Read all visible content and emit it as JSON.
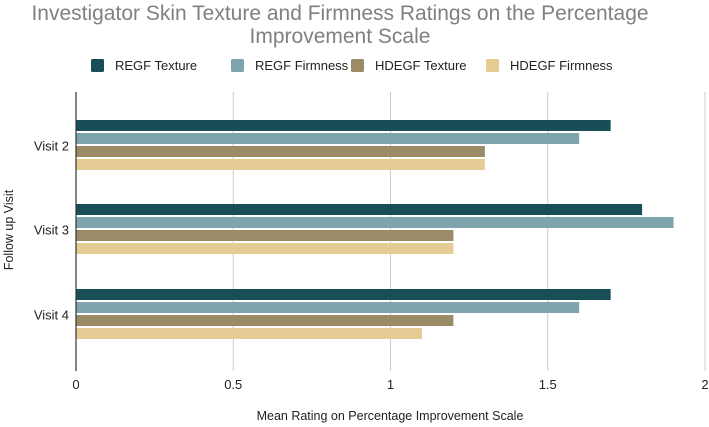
{
  "chart_data": {
    "type": "bar",
    "orientation": "horizontal",
    "title_lines": [
      "Investigator Skin Texture and Firmness Ratings on the Percentage",
      "Improvement Scale"
    ],
    "xlabel": "Mean Rating on Percentage Improvement Scale",
    "ylabel": "Follow up Visit",
    "categories": [
      "Visit 2",
      "Visit 3",
      "Visit 4"
    ],
    "xlim": [
      0,
      2
    ],
    "xticks": [
      0,
      0.5,
      1,
      1.5,
      2
    ],
    "xtick_labels": [
      "0",
      "0.5",
      "1",
      "1.5",
      "2"
    ],
    "grid": "vertical",
    "legend_position": "top",
    "series": [
      {
        "name": "REGF Texture",
        "color": "#174e57",
        "values": [
          1.7,
          1.8,
          1.7
        ]
      },
      {
        "name": "REGF Firmness",
        "color": "#7ea5ad",
        "values": [
          1.6,
          1.9,
          1.6
        ]
      },
      {
        "name": "HDEGF Texture",
        "color": "#9b8b66",
        "values": [
          1.3,
          1.2,
          1.2
        ]
      },
      {
        "name": "HDEGF Firmness",
        "color": "#e4cc94",
        "values": [
          1.3,
          1.2,
          1.1
        ]
      }
    ]
  }
}
